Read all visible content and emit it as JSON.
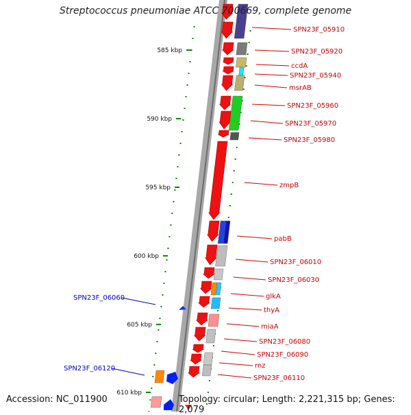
{
  "title": "Streptococcus pneumoniae ATCC 700669, complete genome",
  "footer": {
    "accession": "Accession: NC_011900",
    "topology": "Topology: circular; Length: 2,221,315 bp; Genes: 2,079"
  },
  "colors": {
    "gene_red": "#ee1111",
    "backbone": "#9a9a9a",
    "label_red": "#cc0000",
    "label_blue": "#0000cc",
    "tick_green": "#008800"
  },
  "scale_ticks": [
    {
      "label": "585 kbp"
    },
    {
      "label": "590 kbp"
    },
    {
      "label": "595 kbp"
    },
    {
      "label": "600 kbp"
    },
    {
      "label": "605 kbp"
    },
    {
      "label": "610 kbp"
    }
  ],
  "gene_labels": [
    {
      "text": "SPN23F_05910",
      "strand": "forward"
    },
    {
      "text": "SPN23F_05920",
      "strand": "forward"
    },
    {
      "text": "ccdA",
      "strand": "forward"
    },
    {
      "text": "SPN23F_05940",
      "strand": "forward"
    },
    {
      "text": "msrAB",
      "strand": "forward"
    },
    {
      "text": "SPN23F_05960",
      "strand": "forward"
    },
    {
      "text": "SPN23F_05970",
      "strand": "forward"
    },
    {
      "text": "SPN23F_05980",
      "strand": "forward"
    },
    {
      "text": "zmpB",
      "strand": "forward"
    },
    {
      "text": "pabB",
      "strand": "forward"
    },
    {
      "text": "SPN23F_06010",
      "strand": "forward"
    },
    {
      "text": "SPN23F_06030",
      "strand": "forward"
    },
    {
      "text": "glkA",
      "strand": "forward"
    },
    {
      "text": "thyA",
      "strand": "forward"
    },
    {
      "text": "miaA",
      "strand": "forward"
    },
    {
      "text": "SPN23F_06080",
      "strand": "forward"
    },
    {
      "text": "SPN23F_06090",
      "strand": "forward"
    },
    {
      "text": "rnz",
      "strand": "forward"
    },
    {
      "text": "SPN23F_06110",
      "strand": "forward"
    },
    {
      "text": "SPN23F_06060",
      "strand": "reverse"
    },
    {
      "text": "SPN23F_06120",
      "strand": "reverse"
    }
  ]
}
